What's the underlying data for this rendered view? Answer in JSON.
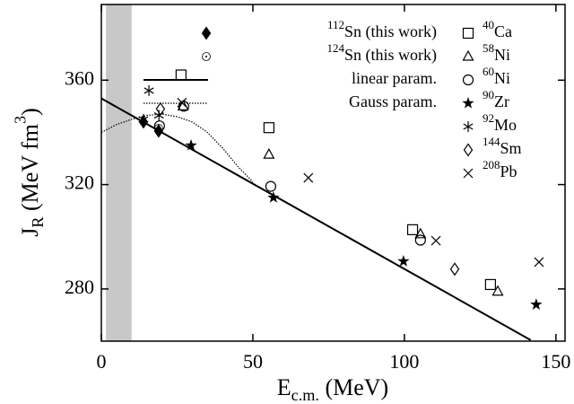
{
  "chart_data": {
    "type": "scatter",
    "xlabel": [
      {
        "text": "E"
      },
      {
        "text": "c.m.",
        "script": "sub"
      },
      {
        "text": " (MeV)"
      }
    ],
    "ylabel": [
      {
        "text": "J"
      },
      {
        "text": "R",
        "script": "sub"
      },
      {
        "text": " (MeV fm"
      },
      {
        "text": "3",
        "script": "sup"
      },
      {
        "text": ")"
      }
    ],
    "xlim": [
      0,
      153
    ],
    "ylim": [
      260,
      389
    ],
    "xticks": [
      0,
      50,
      100,
      150
    ],
    "yticks": [
      280,
      320,
      360
    ],
    "shaded_band": [
      1.5,
      10
    ],
    "shaded_color": "#c8c8c8",
    "series": [
      {
        "name_sup": "112",
        "name": "Sn (this work)",
        "marker": "diamond-filled",
        "color": "#000000",
        "x": [
          13.9,
          18.9
        ],
        "values": [
          344,
          340.5
        ]
      },
      {
        "name_sup": "124",
        "name": "Sn (this work)",
        "marker": "circle-dot",
        "color": "#000000",
        "x": [
          18.9
        ],
        "values": [
          341.5
        ]
      },
      {
        "name": "linear param.",
        "style": "solid",
        "color": "#000000",
        "x": [
          0,
          141.7
        ],
        "values": [
          353,
          260.4
        ]
      },
      {
        "name": "Gauss param.",
        "style": "dotted",
        "color": "#000000",
        "x": [
          0,
          5,
          10,
          15,
          20,
          25,
          30,
          35,
          40,
          45,
          50
        ],
        "values": [
          340,
          343,
          345,
          346.5,
          347,
          346,
          344,
          340,
          334,
          327,
          321
        ]
      },
      {
        "name_sup": "40",
        "name": "Ca",
        "marker": "square",
        "color": "#000000",
        "x": [
          26.3,
          55.3,
          102.7,
          128.4
        ],
        "values": [
          362,
          341.8,
          302.7,
          281.7
        ]
      },
      {
        "name_sup": "58",
        "name": "Ni",
        "marker": "triangle",
        "color": "#000000",
        "x": [
          27,
          55.3,
          105.3,
          130.8
        ],
        "values": [
          350,
          331.5,
          301,
          279
        ]
      },
      {
        "name_sup": "60",
        "name": "Ni",
        "marker": "circle",
        "color": "#000000",
        "x": [
          19.2,
          27.2,
          55.9,
          105.3
        ],
        "values": [
          342.5,
          350,
          319.3,
          298.7
        ]
      },
      {
        "name_sup": "90",
        "name": "Zr",
        "marker": "star",
        "color": "#000000",
        "x": [
          29.6,
          56.8,
          99.7,
          143.5
        ],
        "values": [
          335,
          315,
          290.6,
          274
        ]
      },
      {
        "name_sup": "92",
        "name": "Mo",
        "marker": "asterisk",
        "color": "#000000",
        "x": [
          13.9,
          15.7,
          19
        ],
        "values": [
          345,
          356,
          346.5
        ]
      },
      {
        "name_sup": "144",
        "name": "Sm",
        "marker": "diamond",
        "color": "#000000",
        "x": [
          19.5,
          116.6
        ],
        "values": [
          349,
          287.6
        ]
      },
      {
        "name_sup": "208",
        "name": "Pb",
        "marker": "cross",
        "color": "#000000",
        "x": [
          26.6,
          68.3,
          110.4,
          144.4
        ],
        "values": [
          351.4,
          322.6,
          298.5,
          290.3
        ]
      }
    ]
  }
}
